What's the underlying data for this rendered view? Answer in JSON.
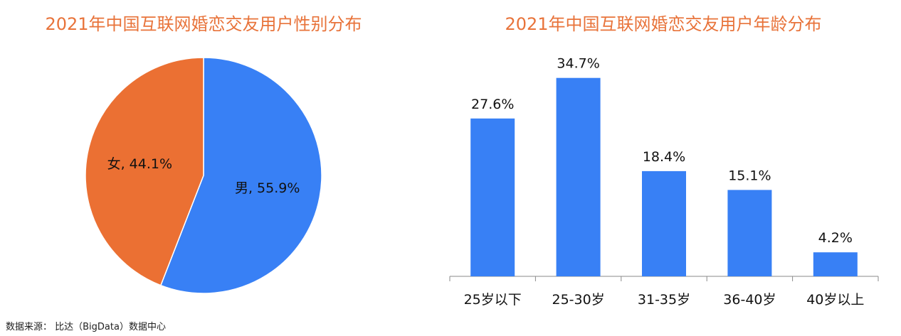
{
  "source_text": "数据来源： 比达（BigData）数据中心",
  "chart_data": [
    {
      "type": "pie",
      "title": "2021年中国互联网婚恋交友用户性别分布",
      "slices": [
        {
          "label": "男",
          "value": 55.9,
          "display": "男, 55.9%",
          "color": "#3880F5"
        },
        {
          "label": "女",
          "value": 44.1,
          "display": "女, 44.1%",
          "color": "#EB7033"
        }
      ]
    },
    {
      "type": "bar",
      "title": "2021年中国互联网婚恋交友用户年龄分布",
      "categories": [
        "25岁以下",
        "25-30岁",
        "31-35岁",
        "36-40岁",
        "40岁以上"
      ],
      "values": [
        27.6,
        34.7,
        18.4,
        15.1,
        4.2
      ],
      "value_labels": [
        "27.6%",
        "34.7%",
        "18.4%",
        "15.1%",
        "4.2%"
      ],
      "color": "#3880F5",
      "xlabel": "",
      "ylabel": "",
      "ylim": [
        0,
        40
      ],
      "grid": false
    }
  ]
}
